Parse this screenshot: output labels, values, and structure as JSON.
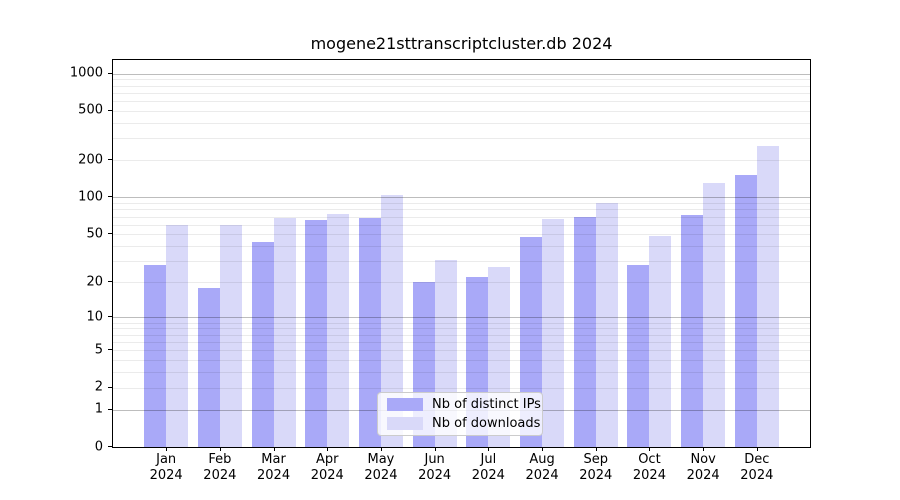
{
  "chart_data": {
    "type": "bar",
    "title": "mogene21sttranscriptcluster.db 2024",
    "categories": [
      "Jan",
      "Feb",
      "Mar",
      "Apr",
      "May",
      "Jun",
      "Jul",
      "Aug",
      "Sep",
      "Oct",
      "Nov",
      "Dec"
    ],
    "category_year": "2024",
    "series": [
      {
        "name": "Nb of distinct IPs",
        "color": "#a9a9f8",
        "values": [
          28,
          18,
          43,
          66,
          68,
          20,
          22,
          48,
          69,
          28,
          72,
          153
        ]
      },
      {
        "name": "Nb of downloads",
        "color": "#d9d9f9",
        "values": [
          60,
          60,
          68,
          73,
          105,
          31,
          27,
          67,
          91,
          49,
          132,
          263
        ]
      }
    ],
    "y_axis": {
      "scale": "log10(1+x)",
      "tick_values": [
        0,
        1,
        2,
        5,
        10,
        20,
        50,
        100,
        200,
        500,
        1000
      ],
      "major_gridlines": [
        1,
        10,
        100,
        1000
      ],
      "minor_gridline_decades": [
        1,
        10,
        100
      ],
      "ylim": [
        0,
        1000
      ]
    },
    "xlabel": "",
    "ylabel": "",
    "grid": true,
    "legend_position": "bottom-center",
    "colors": {
      "background": "#ffffff",
      "spine": "#000000",
      "major_grid": "#c3c3c3",
      "minor_grid": "#ececec"
    }
  }
}
